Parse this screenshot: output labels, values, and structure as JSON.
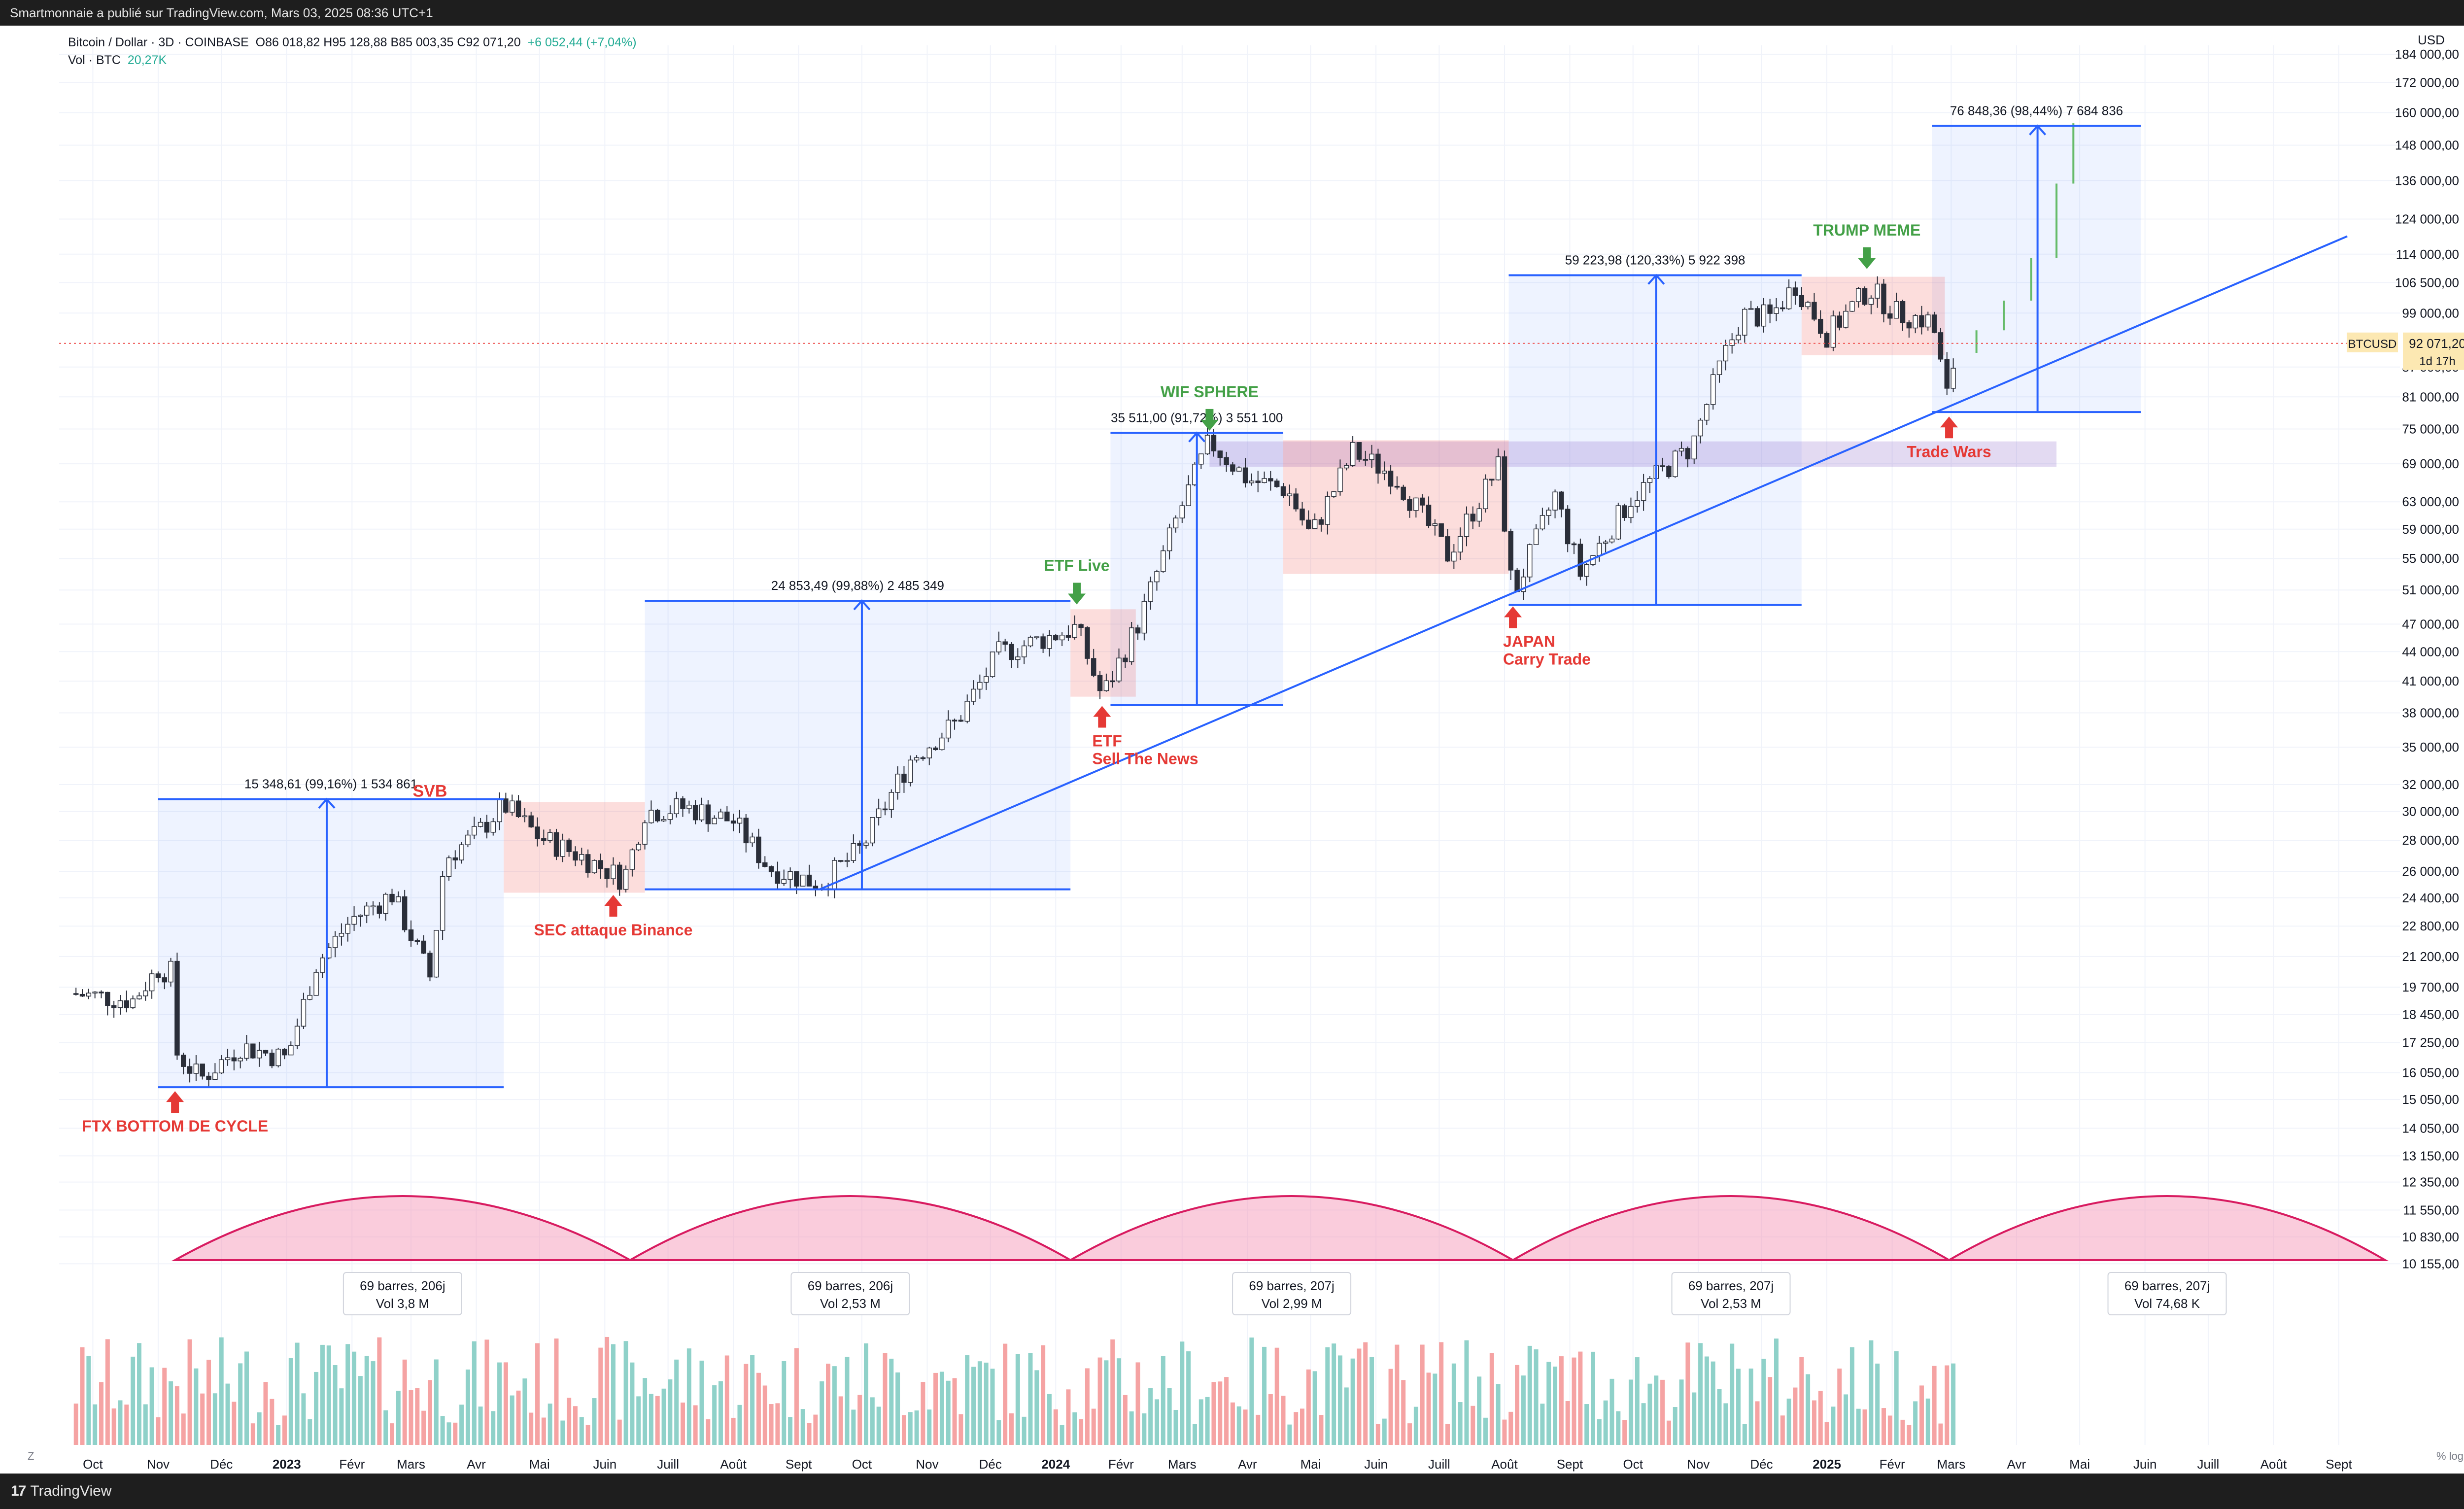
{
  "header": {
    "text": "Smartmonnaie a publié sur TradingView.com, Mars 03, 2025 08:36 UTC+1"
  },
  "footer": {
    "brand_mark": "17",
    "brand": "TradingView"
  },
  "legend": {
    "symbol": "Bitcoin / Dollar · 3D · COINBASE",
    "ohlc": "O86 018,82  H95 128,88  B85 003,35  C92 071,20",
    "change": "+6 052,44 (+7,04%)",
    "vol_label": "Vol · BTC",
    "vol_value": "20,27K"
  },
  "axis_currency": "USD",
  "bottom_left_btn": "Z",
  "bottom_right_btn": "% log",
  "colors": {
    "up": "#26a69a",
    "down": "#ef5350",
    "up_vol": "#8fd1c9",
    "down_vol": "#f5a3a3",
    "blue": "#2962ff",
    "pink": "#d81b60",
    "green_label": "#43a047",
    "red_label": "#e53935"
  },
  "chart_data": {
    "type": "candlestick",
    "symbol": "BTCUSD",
    "scale": "log",
    "ylim": [
      9600,
      188000
    ],
    "y_ticks": [
      "10 155,00",
      "10 830,00",
      "11 550,00",
      "12 350,00",
      "13 150,00",
      "14 050,00",
      "15 050,00",
      "16 050,00",
      "17 250,00",
      "18 450,00",
      "19 700,00",
      "21 200,00",
      "22 800,00",
      "24 400,00",
      "26 000,00",
      "28 000,00",
      "30 000,00",
      "32 000,00",
      "35 000,00",
      "38 000,00",
      "41 000,00",
      "44 000,00",
      "47 000,00",
      "51 000,00",
      "55 000,00",
      "59 000,00",
      "63 000,00",
      "69 000,00",
      "75 000,00",
      "81 000,00",
      "87 000,00",
      "99 000,00",
      "106 500,00",
      "114 000,00",
      "124 000,00",
      "136 000,00",
      "148 000,00",
      "160 000,00",
      "172 000,00",
      "184 000,00"
    ],
    "x_ticks": [
      {
        "label": "Oct",
        "date": "2022-10-01"
      },
      {
        "label": "Nov",
        "date": "2022-11-01"
      },
      {
        "label": "Déc",
        "date": "2022-12-01"
      },
      {
        "label": "2023",
        "date": "2023-01-01",
        "bold": true
      },
      {
        "label": "Févr",
        "date": "2023-02-01"
      },
      {
        "label": "Mars",
        "date": "2023-03-01"
      },
      {
        "label": "Avr",
        "date": "2023-04-01"
      },
      {
        "label": "Mai",
        "date": "2023-05-01"
      },
      {
        "label": "Juin",
        "date": "2023-06-01"
      },
      {
        "label": "Juill",
        "date": "2023-07-01"
      },
      {
        "label": "Août",
        "date": "2023-08-01"
      },
      {
        "label": "Sept",
        "date": "2023-09-01"
      },
      {
        "label": "Oct",
        "date": "2023-10-01"
      },
      {
        "label": "Nov",
        "date": "2023-11-01"
      },
      {
        "label": "Déc",
        "date": "2023-12-01"
      },
      {
        "label": "2024",
        "date": "2024-01-01",
        "bold": true
      },
      {
        "label": "Févr",
        "date": "2024-02-01"
      },
      {
        "label": "Mars",
        "date": "2024-03-01"
      },
      {
        "label": "Avr",
        "date": "2024-04-01"
      },
      {
        "label": "Mai",
        "date": "2024-05-01"
      },
      {
        "label": "Juin",
        "date": "2024-06-01"
      },
      {
        "label": "Juill",
        "date": "2024-07-01"
      },
      {
        "label": "Août",
        "date": "2024-08-01"
      },
      {
        "label": "Sept",
        "date": "2024-09-01"
      },
      {
        "label": "Oct",
        "date": "2024-10-01"
      },
      {
        "label": "Nov",
        "date": "2024-11-01"
      },
      {
        "label": "Déc",
        "date": "2024-12-01"
      },
      {
        "label": "2025",
        "date": "2025-01-01",
        "bold": true
      },
      {
        "label": "Févr",
        "date": "2025-02-01"
      },
      {
        "label": "Mars",
        "date": "2025-03-01"
      },
      {
        "label": "Avr",
        "date": "2025-04-01"
      },
      {
        "label": "Mai",
        "date": "2025-05-01"
      },
      {
        "label": "Juin",
        "date": "2025-06-01"
      },
      {
        "label": "Juill",
        "date": "2025-07-01"
      },
      {
        "label": "Août",
        "date": "2025-08-01"
      },
      {
        "label": "Sept",
        "date": "2025-09-01"
      }
    ],
    "price_path": [
      {
        "date": "2022-09-20",
        "close": 19400
      },
      {
        "date": "2022-10-01",
        "close": 19300
      },
      {
        "date": "2022-10-20",
        "close": 19100
      },
      {
        "date": "2022-11-01",
        "close": 20600
      },
      {
        "date": "2022-11-07",
        "close": 20400
      },
      {
        "date": "2022-11-10",
        "close": 16800
      },
      {
        "date": "2022-11-21",
        "close": 15800
      },
      {
        "date": "2022-12-10",
        "close": 17100
      },
      {
        "date": "2023-01-01",
        "close": 16600
      },
      {
        "date": "2023-01-15",
        "close": 20800
      },
      {
        "date": "2023-02-01",
        "close": 23200
      },
      {
        "date": "2023-02-20",
        "close": 24600
      },
      {
        "date": "2023-03-10",
        "close": 20200
      },
      {
        "date": "2023-03-17",
        "close": 26800
      },
      {
        "date": "2023-04-01",
        "close": 28400
      },
      {
        "date": "2023-04-14",
        "close": 30500
      },
      {
        "date": "2023-05-01",
        "close": 28200
      },
      {
        "date": "2023-05-20",
        "close": 27000
      },
      {
        "date": "2023-06-10",
        "close": 25500
      },
      {
        "date": "2023-06-20",
        "close": 30000
      },
      {
        "date": "2023-07-10",
        "close": 30300
      },
      {
        "date": "2023-08-01",
        "close": 29300
      },
      {
        "date": "2023-08-18",
        "close": 26200
      },
      {
        "date": "2023-09-11",
        "close": 25200
      },
      {
        "date": "2023-10-01",
        "close": 27500
      },
      {
        "date": "2023-10-24",
        "close": 34000
      },
      {
        "date": "2023-11-15",
        "close": 37200
      },
      {
        "date": "2023-12-05",
        "close": 43800
      },
      {
        "date": "2024-01-11",
        "close": 46600
      },
      {
        "date": "2024-01-23",
        "close": 39500
      },
      {
        "date": "2024-02-10",
        "close": 47500
      },
      {
        "date": "2024-02-28",
        "close": 61000
      },
      {
        "date": "2024-03-14",
        "close": 72800
      },
      {
        "date": "2024-04-01",
        "close": 66500
      },
      {
        "date": "2024-04-20",
        "close": 64800
      },
      {
        "date": "2024-05-01",
        "close": 58000
      },
      {
        "date": "2024-05-21",
        "close": 71000
      },
      {
        "date": "2024-06-10",
        "close": 67000
      },
      {
        "date": "2024-07-05",
        "close": 55500
      },
      {
        "date": "2024-07-29",
        "close": 68500
      },
      {
        "date": "2024-08-05",
        "close": 50200
      },
      {
        "date": "2024-08-25",
        "close": 64000
      },
      {
        "date": "2024-09-06",
        "close": 53000
      },
      {
        "date": "2024-09-30",
        "close": 63500
      },
      {
        "date": "2024-10-29",
        "close": 72000
      },
      {
        "date": "2024-11-12",
        "close": 88000
      },
      {
        "date": "2024-11-22",
        "close": 98500
      },
      {
        "date": "2024-12-05",
        "close": 98000
      },
      {
        "date": "2024-12-17",
        "close": 106000
      },
      {
        "date": "2025-01-01",
        "close": 94000
      },
      {
        "date": "2025-01-21",
        "close": 105000
      },
      {
        "date": "2025-02-03",
        "close": 99000
      },
      {
        "date": "2025-02-20",
        "close": 97000
      },
      {
        "date": "2025-02-28",
        "close": 79000
      },
      {
        "date": "2025-03-03",
        "close": 92071
      }
    ],
    "projection": {
      "color": "#66bb6a",
      "path": [
        {
          "date": "2025-03-06",
          "close": 90000
        },
        {
          "date": "2025-03-20",
          "close": 95000
        },
        {
          "date": "2025-04-01",
          "close": 102000
        },
        {
          "date": "2025-04-15",
          "close": 113000
        },
        {
          "date": "2025-04-25",
          "close": 135000
        },
        {
          "date": "2025-05-01",
          "close": 156000
        }
      ]
    },
    "measures": [
      {
        "label": "15 348,61 (99,16%) 1 534 861",
        "x0": "2022-11-01",
        "x1": "2023-04-14",
        "y0": 15500,
        "y1": 30900,
        "arrow": "2023-01-20"
      },
      {
        "label": "24 853,49 (99,88%) 2 485 349",
        "x0": "2023-06-20",
        "x1": "2024-01-08",
        "y0": 24900,
        "y1": 49700,
        "arrow": "2023-10-01"
      },
      {
        "label": "35 511,00 (91,72%) 3 551 100",
        "x0": "2024-01-27",
        "x1": "2024-04-18",
        "y0": 38700,
        "y1": 74300,
        "arrow": "2024-03-08"
      },
      {
        "label": "59 223,98 (120,33%) 5 922 398",
        "x0": "2024-08-03",
        "x1": "2024-12-20",
        "y0": 49200,
        "y1": 108400,
        "arrow": "2024-10-12"
      },
      {
        "label": "76 848,36 (98,44%) 7 684 836",
        "x0": "2025-02-20",
        "x1": "2025-05-30",
        "y0": 78100,
        "y1": 155000,
        "arrow": "2025-04-11"
      }
    ],
    "shaded_blue_extra": [
      {
        "x0": "2022-11-01",
        "x1": "2023-04-14",
        "y0": 15500,
        "y1": 30900
      },
      {
        "x0": "2023-06-20",
        "x1": "2024-01-08",
        "y0": 24900,
        "y1": 49700
      },
      {
        "x0": "2024-01-27",
        "x1": "2024-04-18",
        "y0": 38700,
        "y1": 74300
      },
      {
        "x0": "2024-08-03",
        "x1": "2024-12-20",
        "y0": 49200,
        "y1": 108400
      },
      {
        "x0": "2025-02-20",
        "x1": "2025-05-30",
        "y0": 78100,
        "y1": 155000
      }
    ],
    "pink_zones": [
      {
        "x0": "2023-04-14",
        "x1": "2023-06-20",
        "y0": 24700,
        "y1": 30700
      },
      {
        "x0": "2024-01-08",
        "x1": "2024-02-08",
        "y0": 39500,
        "y1": 48700
      },
      {
        "x0": "2024-04-18",
        "x1": "2024-08-03",
        "y0": 53000,
        "y1": 73000
      },
      {
        "x0": "2024-12-20",
        "x1": "2025-02-26",
        "y0": 89500,
        "y1": 108000
      }
    ],
    "purple_zone": {
      "x0": "2024-03-14",
      "x1": "2025-04-20",
      "y0": 68500,
      "y1": 72800
    },
    "trendline": {
      "x0": "2023-09-11",
      "y0": 24900,
      "x1": "2025-09-05",
      "y1": 119000
    },
    "annotations": [
      {
        "text": "FTX BOTTOM DE CYCLE",
        "color": "red",
        "date": "2022-11-09",
        "price": 15500,
        "arrow": "up"
      },
      {
        "text": "SVB",
        "color": "red",
        "date": "2023-03-10",
        "price": 30000,
        "arrow": "none"
      },
      {
        "text": "SEC attaque Binance",
        "color": "red",
        "date": "2023-06-05",
        "price": 24800,
        "arrow": "up"
      },
      {
        "text": "ETF Live",
        "color": "green",
        "date": "2024-01-11",
        "price": 48800,
        "arrow": "down"
      },
      {
        "text": "ETF Sell The News",
        "color": "red",
        "date": "2024-01-23",
        "price": 39000,
        "arrow": "up"
      },
      {
        "text": "WIF SPHERE",
        "color": "green",
        "date": "2024-03-14",
        "price": 74000,
        "arrow": "down"
      },
      {
        "text": "JAPAN Carry Trade",
        "color": "red",
        "date": "2024-08-05",
        "price": 49500,
        "arrow": "up"
      },
      {
        "text": "TRUMP MEME",
        "color": "green",
        "date": "2025-01-20",
        "price": 109000,
        "arrow": "down"
      },
      {
        "text": "Trade Wars",
        "color": "red",
        "date": "2025-02-28",
        "price": 78000,
        "arrow": "up"
      }
    ],
    "cycles": [
      {
        "x0": "2022-11-09",
        "x1": "2023-06-13",
        "label": "69 barres, 206j",
        "vol": "Vol 3,8 M"
      },
      {
        "x0": "2023-06-13",
        "x1": "2024-01-08",
        "label": "69 barres, 206j",
        "vol": "Vol 2,53 M"
      },
      {
        "x0": "2024-01-08",
        "x1": "2024-08-05",
        "label": "69 barres, 207j",
        "vol": "Vol 2,99 M"
      },
      {
        "x0": "2024-08-05",
        "x1": "2025-02-28",
        "label": "69 barres, 207j",
        "vol": "Vol 2,53 M"
      },
      {
        "x0": "2025-02-28",
        "x1": "2025-09-23",
        "label": "69 barres, 207j",
        "vol": "Vol 74,68 K"
      }
    ],
    "last_price": {
      "symbol": "BTCUSD",
      "value": "92 071,20",
      "countdown": "1d 17h",
      "price": 92071
    }
  }
}
